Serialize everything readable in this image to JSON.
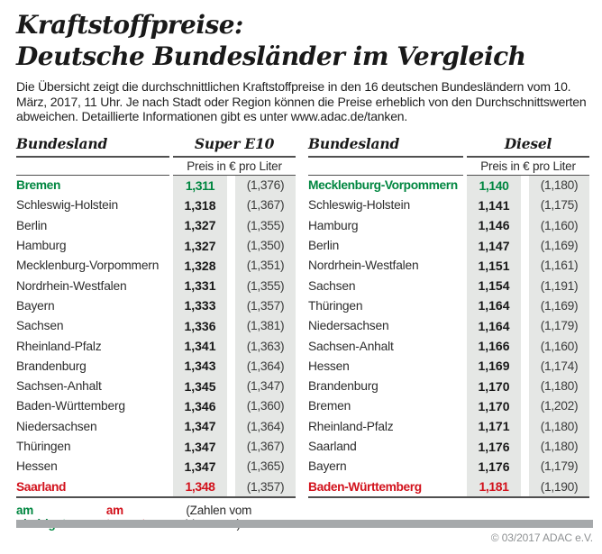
{
  "title": {
    "line1": "Kraftstoffpreise:",
    "line2": "Deutsche Bundesländer im Vergleich"
  },
  "intro": "Die Übersicht zeigt die durchschnittlichen Kraftstoffpreise in den 16 deutschen Bundesländern vom 10. März, 2017, 11 Uhr. Je nach Stadt oder Region können die Preise erheblich von den Durchschnittswerten abweichen. Detaillierte Informationen gibt es unter www.adac.de/tanken.",
  "colors": {
    "green": "#008640",
    "red": "#d2121c",
    "shade": "#e5e7e5",
    "bar": "#a6a9ab"
  },
  "chart_data": [
    {
      "type": "table",
      "col_header": "Bundesland",
      "fuel": "Super E10",
      "unit": "Preis in € pro Liter",
      "note": "values in parentheses are previous month",
      "rows": [
        {
          "land": "Bremen",
          "price": "1,311",
          "prev": "(1,376)",
          "highlight": "green"
        },
        {
          "land": "Schleswig-Holstein",
          "price": "1,318",
          "prev": "(1,367)"
        },
        {
          "land": "Berlin",
          "price": "1,327",
          "prev": "(1,355)"
        },
        {
          "land": "Hamburg",
          "price": "1,327",
          "prev": "(1,350)"
        },
        {
          "land": "Mecklenburg-Vorpommern",
          "price": "1,328",
          "prev": "(1,351)"
        },
        {
          "land": "Nordrhein-Westfalen",
          "price": "1,331",
          "prev": "(1,355)"
        },
        {
          "land": "Bayern",
          "price": "1,333",
          "prev": "(1,357)"
        },
        {
          "land": "Sachsen",
          "price": "1,336",
          "prev": "(1,381)"
        },
        {
          "land": "Rheinland-Pfalz",
          "price": "1,341",
          "prev": "(1,363)"
        },
        {
          "land": "Brandenburg",
          "price": "1,343",
          "prev": "(1,364)"
        },
        {
          "land": "Sachsen-Anhalt",
          "price": "1,345",
          "prev": "(1,347)"
        },
        {
          "land": "Baden-Württemberg",
          "price": "1,346",
          "prev": "(1,360)"
        },
        {
          "land": "Niedersachsen",
          "price": "1,347",
          "prev": "(1,364)"
        },
        {
          "land": "Thüringen",
          "price": "1,347",
          "prev": "(1,367)"
        },
        {
          "land": "Hessen",
          "price": "1,347",
          "prev": "(1,365)"
        },
        {
          "land": "Saarland",
          "price": "1,348",
          "prev": "(1,357)",
          "highlight": "red"
        }
      ]
    },
    {
      "type": "table",
      "col_header": "Bundesland",
      "fuel": "Diesel",
      "unit": "Preis in € pro Liter",
      "note": "values in parentheses are previous month",
      "rows": [
        {
          "land": "Mecklenburg-Vorpommern",
          "price": "1,140",
          "prev": "(1,180)",
          "highlight": "green"
        },
        {
          "land": "Schleswig-Holstein",
          "price": "1,141",
          "prev": "(1,175)"
        },
        {
          "land": "Hamburg",
          "price": "1,146",
          "prev": "(1,160)"
        },
        {
          "land": "Berlin",
          "price": "1,147",
          "prev": "(1,169)"
        },
        {
          "land": "Nordrhein-Westfalen",
          "price": "1,151",
          "prev": "(1,161)"
        },
        {
          "land": "Sachsen",
          "price": "1,154",
          "prev": "(1,191)"
        },
        {
          "land": "Thüringen",
          "price": "1,164",
          "prev": "(1,169)"
        },
        {
          "land": "Niedersachsen",
          "price": "1,164",
          "prev": "(1,179)"
        },
        {
          "land": "Sachsen-Anhalt",
          "price": "1,166",
          "prev": "(1,160)"
        },
        {
          "land": "Hessen",
          "price": "1,169",
          "prev": "(1,174)"
        },
        {
          "land": "Brandenburg",
          "price": "1,170",
          "prev": "(1,180)"
        },
        {
          "land": "Bremen",
          "price": "1,170",
          "prev": "(1,202)"
        },
        {
          "land": "Rheinland-Pfalz",
          "price": "1,171",
          "prev": "(1,180)"
        },
        {
          "land": "Saarland",
          "price": "1,176",
          "prev": "(1,180)"
        },
        {
          "land": "Bayern",
          "price": "1,176",
          "prev": "(1,179)"
        },
        {
          "land": "Baden-Württemberg",
          "price": "1,181",
          "prev": "(1,190)",
          "highlight": "red"
        }
      ]
    }
  ],
  "legend": {
    "lowest": "am niedrigsten",
    "highest": "am teuersten",
    "note": "(Zahlen vom Vormonat)"
  },
  "footer": {
    "copyright": "© 03/2017 ADAC e.V."
  }
}
